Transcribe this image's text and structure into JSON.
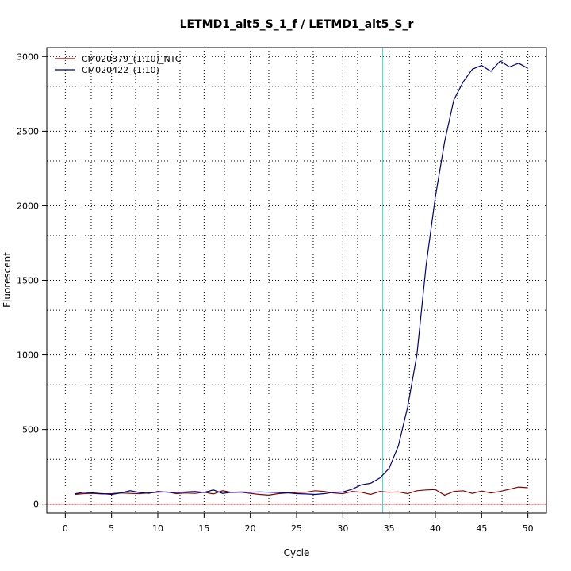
{
  "chart_data": {
    "type": "line",
    "title": "LETMD1_alt5_S_1_f / LETMD1_alt5_S_r",
    "xlabel": "Cycle",
    "ylabel": "Fluorescent",
    "xlim": [
      -2,
      52
    ],
    "ylim": [
      -60,
      3060
    ],
    "x_ticks": [
      0,
      5,
      10,
      15,
      20,
      25,
      30,
      35,
      40,
      45,
      50
    ],
    "y_ticks": [
      0,
      500,
      1000,
      1500,
      2000,
      2500,
      3000
    ],
    "x_minor_grid": [
      2.8,
      7.6,
      12.4,
      17.2,
      22.0,
      26.8,
      31.6,
      37.2,
      42.4,
      47.2
    ],
    "y_minor_grid": [
      300,
      800,
      1300,
      1800,
      2300,
      2800
    ],
    "grid": true,
    "threshold_cycle": 34.3,
    "threshold_color": "#40e0e0",
    "baseline_y": 0,
    "baseline_color": "#8b0000",
    "legend_position": "top-left",
    "x": [
      1,
      2,
      3,
      4,
      5,
      6,
      7,
      8,
      9,
      10,
      11,
      12,
      13,
      14,
      15,
      16,
      17,
      18,
      19,
      20,
      21,
      22,
      23,
      24,
      25,
      26,
      27,
      28,
      29,
      30,
      31,
      32,
      33,
      34,
      35,
      36,
      37,
      38,
      39,
      40,
      41,
      42,
      43,
      44,
      45,
      46,
      47,
      48,
      49,
      50
    ],
    "series": [
      {
        "name": "CM020379_(1:10)_NTC",
        "color": "#8b0000",
        "values": [
          65,
          70,
          72,
          68,
          70,
          75,
          72,
          70,
          75,
          80,
          82,
          70,
          75,
          72,
          80,
          68,
          90,
          78,
          80,
          72,
          65,
          60,
          70,
          75,
          78,
          80,
          90,
          85,
          75,
          70,
          85,
          80,
          65,
          85,
          80,
          82,
          70,
          90,
          95,
          98,
          60,
          85,
          90,
          72,
          88,
          75,
          85,
          100,
          115,
          110
        ]
      },
      {
        "name": "CM020422_(1:10)",
        "color": "#000080",
        "values": [
          68,
          80,
          75,
          70,
          65,
          75,
          90,
          78,
          72,
          85,
          80,
          78,
          82,
          85,
          78,
          95,
          72,
          80,
          82,
          80,
          82,
          80,
          78,
          76,
          70,
          68,
          65,
          70,
          80,
          82,
          100,
          130,
          140,
          175,
          240,
          390,
          650,
          1000,
          1600,
          2060,
          2430,
          2710,
          2830,
          2915,
          2940,
          2900,
          2970,
          2930,
          2955,
          2920
        ]
      }
    ]
  }
}
